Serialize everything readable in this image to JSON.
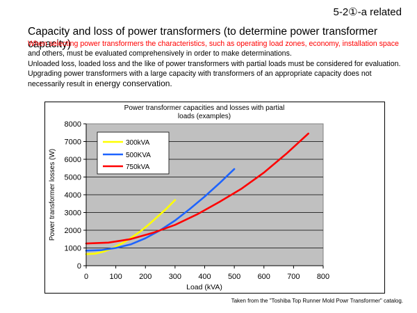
{
  "header": {
    "tag": "5-2①-a related",
    "title": "Capacity and loss of power transformers (to determine power transformer capacity)"
  },
  "intro": {
    "para1_red": "When selecting power transformers the characteristics, such as operating load zones, economy, installation space",
    "para1_tail": " and others, must be evaluated comprehensively in order to make determinations.",
    "para2": "Unloaded loss, loaded loss and the like of power transformers with partial loads must be considered for evaluation.",
    "para3": "Upgrading power transformers with a large capacity with transformers of an appropriate capacity does not necessarily result in",
    "para3_emph": " energy conservation."
  },
  "source_note": "Taken from the \"Toshiba Top Runner Mold Powr Transformer\" catalog.",
  "chart_data": {
    "type": "line",
    "title": "Power transformer capacities and losses with partial loads (examples)",
    "title_lines": [
      "Power transformer capacities and losses with partial",
      "loads (examples)"
    ],
    "xlabel": "Load (kVA)",
    "ylabel": "Power transformer losses (W)",
    "xlim": [
      0,
      800
    ],
    "ylim": [
      0,
      8000
    ],
    "xticks": [
      0,
      100,
      200,
      300,
      400,
      500,
      600,
      700,
      800
    ],
    "yticks": [
      0,
      1000,
      2000,
      3000,
      4000,
      5000,
      6000,
      7000,
      8000
    ],
    "grid": "horizontal",
    "plot_background": "#c0c0c0",
    "legend_position": "top-left",
    "series": [
      {
        "name": "300kVA",
        "color": "#ffff00",
        "x": [
          0,
          30,
          60,
          90,
          120,
          150,
          180,
          210,
          240,
          270,
          300
        ],
        "y": [
          650,
          680,
          800,
          1000,
          1250,
          1550,
          1900,
          2300,
          2750,
          3200,
          3700
        ]
      },
      {
        "name": "500KVA",
        "color": "#1e64ff",
        "x": [
          0,
          50,
          100,
          150,
          200,
          250,
          300,
          350,
          400,
          450,
          500
        ],
        "y": [
          850,
          880,
          1000,
          1200,
          1550,
          2000,
          2550,
          3200,
          3900,
          4650,
          5450
        ]
      },
      {
        "name": "750kVA",
        "color": "#ff0000",
        "x": [
          0,
          75,
          150,
          225,
          300,
          375,
          450,
          525,
          600,
          675,
          750
        ],
        "y": [
          1250,
          1300,
          1500,
          1850,
          2300,
          2900,
          3600,
          4350,
          5250,
          6300,
          7450
        ]
      }
    ]
  }
}
